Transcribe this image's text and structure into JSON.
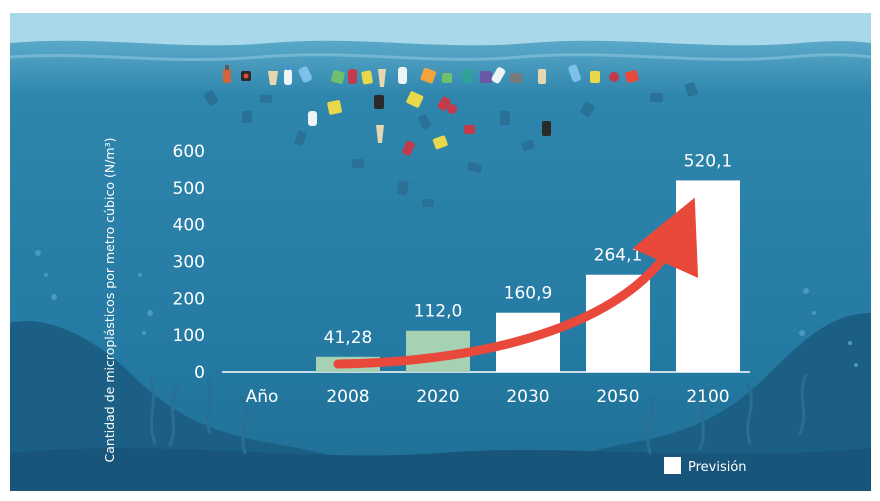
{
  "chart_data": {
    "type": "bar",
    "title": "",
    "ylabel": "Cantidad de microplásticos por metro cúbico (N/m³)",
    "xlabel": "Año",
    "categories": [
      "2008",
      "2020",
      "2030",
      "2050",
      "2100"
    ],
    "values": [
      41.28,
      112.0,
      160.9,
      264.1,
      520.1
    ],
    "value_labels": [
      "41,28",
      "112,0",
      "160,9",
      "264,1",
      "520,1"
    ],
    "forecast": [
      false,
      false,
      true,
      true,
      true
    ],
    "y_ticks": [
      "0",
      "100",
      "200",
      "300",
      "400",
      "500",
      "600"
    ],
    "ylim": [
      0,
      600
    ],
    "grid": false,
    "legend": {
      "label": "Previsión",
      "placement": "bottom-right"
    },
    "colors": {
      "observed_bar": "#a6d1b3",
      "forecast_bar": "#ffffff",
      "trend_arrow": "#e8493b",
      "water": "#2b7fa6",
      "sky": "#a9d8ea"
    }
  }
}
